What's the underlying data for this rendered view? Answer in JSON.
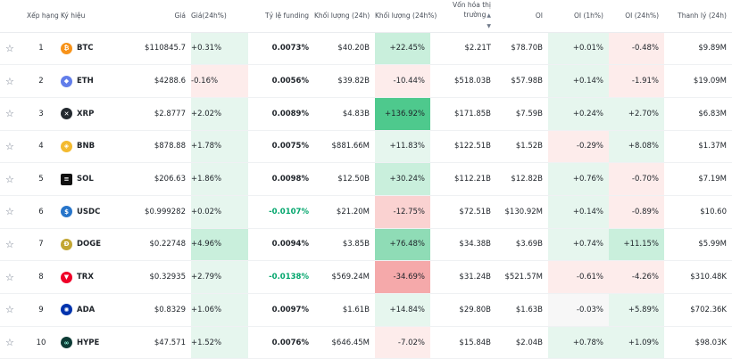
{
  "headers": {
    "rank": "Xếp hạng",
    "symbol": "Ký hiệu",
    "price": "Giá",
    "price_change_24h": "Giá(24h%)",
    "funding_rate": "Tỷ lệ funding",
    "volume_24h": "Khối lượng (24h)",
    "volume_change_24h": "Khối lượng (24h%)",
    "market_cap": "Vốn hóa thị trường",
    "oi": "OI",
    "oi_1h": "OI (1h%)",
    "oi_24h": "OI (24h%)",
    "liquidation": "Thanh lý (24h)"
  },
  "colors": {
    "positive_light": "#e6f6ee",
    "positive_strong": "#4ec98d",
    "negative_light": "#fdeceb",
    "negative_strong": "#f5a9aa",
    "negative_funding_text": "#03a66d"
  },
  "rows": [
    {
      "rank": "1",
      "symbol": "BTC",
      "icon": "bitcoin-icon",
      "icon_color": "#f7931a",
      "icon_glyph": "₿",
      "price": "$110845.7",
      "price_change": "+0.31%",
      "funding": "0.0073%",
      "volume": "$40.20B",
      "volume_change": "+22.45%",
      "market_cap": "$2.21T",
      "oi": "$78.70B",
      "oi_1h": "+0.01%",
      "oi_24h": "-0.48%",
      "liquidation": "$9.89M"
    },
    {
      "rank": "2",
      "symbol": "ETH",
      "icon": "ethereum-icon",
      "icon_color": "#627eea",
      "icon_glyph": "◆",
      "price": "$4288.6",
      "price_change": "-0.16%",
      "funding": "0.0056%",
      "volume": "$39.82B",
      "volume_change": "-10.44%",
      "market_cap": "$518.03B",
      "oi": "$57.98B",
      "oi_1h": "+0.14%",
      "oi_24h": "-1.91%",
      "liquidation": "$19.09M"
    },
    {
      "rank": "3",
      "symbol": "XRP",
      "icon": "xrp-icon",
      "icon_color": "#23292f",
      "icon_glyph": "✕",
      "price": "$2.8777",
      "price_change": "+2.02%",
      "funding": "0.0089%",
      "volume": "$4.83B",
      "volume_change": "+136.92%",
      "market_cap": "$171.85B",
      "oi": "$7.59B",
      "oi_1h": "+0.24%",
      "oi_24h": "+2.70%",
      "liquidation": "$6.83M"
    },
    {
      "rank": "4",
      "symbol": "BNB",
      "icon": "bnb-icon",
      "icon_color": "#f3ba2f",
      "icon_glyph": "◈",
      "price": "$878.88",
      "price_change": "+1.78%",
      "funding": "0.0075%",
      "volume": "$881.66M",
      "volume_change": "+11.83%",
      "market_cap": "$122.51B",
      "oi": "$1.52B",
      "oi_1h": "-0.29%",
      "oi_24h": "+8.08%",
      "liquidation": "$1.37M"
    },
    {
      "rank": "5",
      "symbol": "SOL",
      "icon": "solana-icon",
      "icon_color": "#111111",
      "icon_glyph": "≡",
      "price": "$206.63",
      "price_change": "+1.86%",
      "funding": "0.0098%",
      "volume": "$12.50B",
      "volume_change": "+30.24%",
      "market_cap": "$112.21B",
      "oi": "$12.82B",
      "oi_1h": "+0.76%",
      "oi_24h": "-0.70%",
      "liquidation": "$7.19M"
    },
    {
      "rank": "6",
      "symbol": "USDC",
      "icon": "usdc-icon",
      "icon_color": "#2775ca",
      "icon_glyph": "$",
      "price": "$0.999282",
      "price_change": "+0.02%",
      "funding": "-0.0107%",
      "volume": "$21.20M",
      "volume_change": "-12.75%",
      "market_cap": "$72.51B",
      "oi": "$130.92M",
      "oi_1h": "+0.14%",
      "oi_24h": "-0.89%",
      "liquidation": "$10.60"
    },
    {
      "rank": "7",
      "symbol": "DOGE",
      "icon": "dogecoin-icon",
      "icon_color": "#c2a633",
      "icon_glyph": "Ð",
      "price": "$0.22748",
      "price_change": "+4.96%",
      "funding": "0.0094%",
      "volume": "$3.85B",
      "volume_change": "+76.48%",
      "market_cap": "$34.38B",
      "oi": "$3.69B",
      "oi_1h": "+0.74%",
      "oi_24h": "+11.15%",
      "liquidation": "$5.99M"
    },
    {
      "rank": "8",
      "symbol": "TRX",
      "icon": "tron-icon",
      "icon_color": "#ef0027",
      "icon_glyph": "▼",
      "price": "$0.32935",
      "price_change": "+2.79%",
      "funding": "-0.0138%",
      "volume": "$569.24M",
      "volume_change": "-34.69%",
      "market_cap": "$31.24B",
      "oi": "$521.57M",
      "oi_1h": "-0.61%",
      "oi_24h": "-4.26%",
      "liquidation": "$310.48K"
    },
    {
      "rank": "9",
      "symbol": "ADA",
      "icon": "cardano-icon",
      "icon_color": "#0033ad",
      "icon_glyph": "✺",
      "price": "$0.8329",
      "price_change": "+1.06%",
      "funding": "0.0097%",
      "volume": "$1.61B",
      "volume_change": "+14.84%",
      "market_cap": "$29.80B",
      "oi": "$1.63B",
      "oi_1h": "-0.03%",
      "oi_24h": "+5.89%",
      "liquidation": "$702.36K"
    },
    {
      "rank": "10",
      "symbol": "HYPE",
      "icon": "hyperliquid-icon",
      "icon_color": "#0d3b35",
      "icon_glyph": "∞",
      "price": "$47.571",
      "price_change": "+1.52%",
      "funding": "0.0076%",
      "volume": "$646.45M",
      "volume_change": "-7.02%",
      "market_cap": "$15.84B",
      "oi": "$2.04B",
      "oi_1h": "+0.78%",
      "oi_24h": "+1.09%",
      "liquidation": "$98.03K"
    }
  ]
}
